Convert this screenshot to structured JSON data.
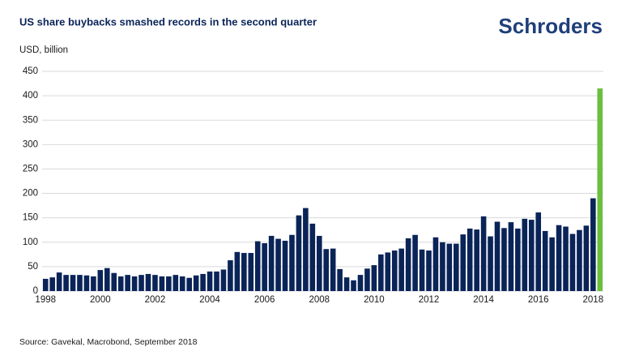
{
  "brand": "Schroders",
  "chart_data": {
    "type": "bar",
    "title": "US share buybacks smashed records in the second quarter",
    "y_label": "USD, billion",
    "source": "Source: Gavekal, Macrobond, September 2018",
    "categories": [
      "1998",
      null,
      null,
      null,
      null,
      null,
      null,
      null,
      "2000",
      null,
      null,
      null,
      null,
      null,
      null,
      null,
      "2002",
      null,
      null,
      null,
      null,
      null,
      null,
      null,
      "2004",
      null,
      null,
      null,
      null,
      null,
      null,
      null,
      "2006",
      null,
      null,
      null,
      null,
      null,
      null,
      null,
      "2008",
      null,
      null,
      null,
      null,
      null,
      null,
      null,
      "2010",
      null,
      null,
      null,
      null,
      null,
      null,
      null,
      "2012",
      null,
      null,
      null,
      null,
      null,
      null,
      null,
      "2014",
      null,
      null,
      null,
      null,
      null,
      null,
      null,
      "2016",
      null,
      null,
      null,
      null,
      null,
      null,
      null,
      "2018",
      null
    ],
    "values": [
      25,
      28,
      38,
      33,
      33,
      33,
      32,
      30,
      43,
      47,
      37,
      30,
      33,
      30,
      33,
      35,
      33,
      30,
      30,
      33,
      30,
      27,
      32,
      35,
      40,
      40,
      44,
      63,
      80,
      78,
      78,
      102,
      98,
      113,
      107,
      103,
      115,
      155,
      170,
      138,
      113,
      86,
      87,
      45,
      28,
      22,
      33,
      46,
      53,
      75,
      79,
      83,
      87,
      108,
      115,
      85,
      83,
      110,
      100,
      97,
      97,
      116,
      128,
      126,
      153,
      112,
      142,
      129,
      141,
      128,
      148,
      146,
      161,
      123,
      110,
      135,
      132,
      117,
      125,
      134,
      190,
      415
    ],
    "colors": [
      "#0a2458",
      "#0a2458",
      "#0a2458",
      "#0a2458",
      "#0a2458",
      "#0a2458",
      "#0a2458",
      "#0a2458",
      "#0a2458",
      "#0a2458",
      "#0a2458",
      "#0a2458",
      "#0a2458",
      "#0a2458",
      "#0a2458",
      "#0a2458",
      "#0a2458",
      "#0a2458",
      "#0a2458",
      "#0a2458",
      "#0a2458",
      "#0a2458",
      "#0a2458",
      "#0a2458",
      "#0a2458",
      "#0a2458",
      "#0a2458",
      "#0a2458",
      "#0a2458",
      "#0a2458",
      "#0a2458",
      "#0a2458",
      "#0a2458",
      "#0a2458",
      "#0a2458",
      "#0a2458",
      "#0a2458",
      "#0a2458",
      "#0a2458",
      "#0a2458",
      "#0a2458",
      "#0a2458",
      "#0a2458",
      "#0a2458",
      "#0a2458",
      "#0a2458",
      "#0a2458",
      "#0a2458",
      "#0a2458",
      "#0a2458",
      "#0a2458",
      "#0a2458",
      "#0a2458",
      "#0a2458",
      "#0a2458",
      "#0a2458",
      "#0a2458",
      "#0a2458",
      "#0a2458",
      "#0a2458",
      "#0a2458",
      "#0a2458",
      "#0a2458",
      "#0a2458",
      "#0a2458",
      "#0a2458",
      "#0a2458",
      "#0a2458",
      "#0a2458",
      "#0a2458",
      "#0a2458",
      "#0a2458",
      "#0a2458",
      "#0a2458",
      "#0a2458",
      "#0a2458",
      "#0a2458",
      "#0a2458",
      "#0a2458",
      "#0a2458",
      "#0a2458",
      "#6abf3f"
    ],
    "ylim": [
      0,
      450
    ],
    "yticks": [
      0,
      50,
      100,
      150,
      200,
      250,
      300,
      350,
      400,
      450
    ],
    "grid": true
  }
}
